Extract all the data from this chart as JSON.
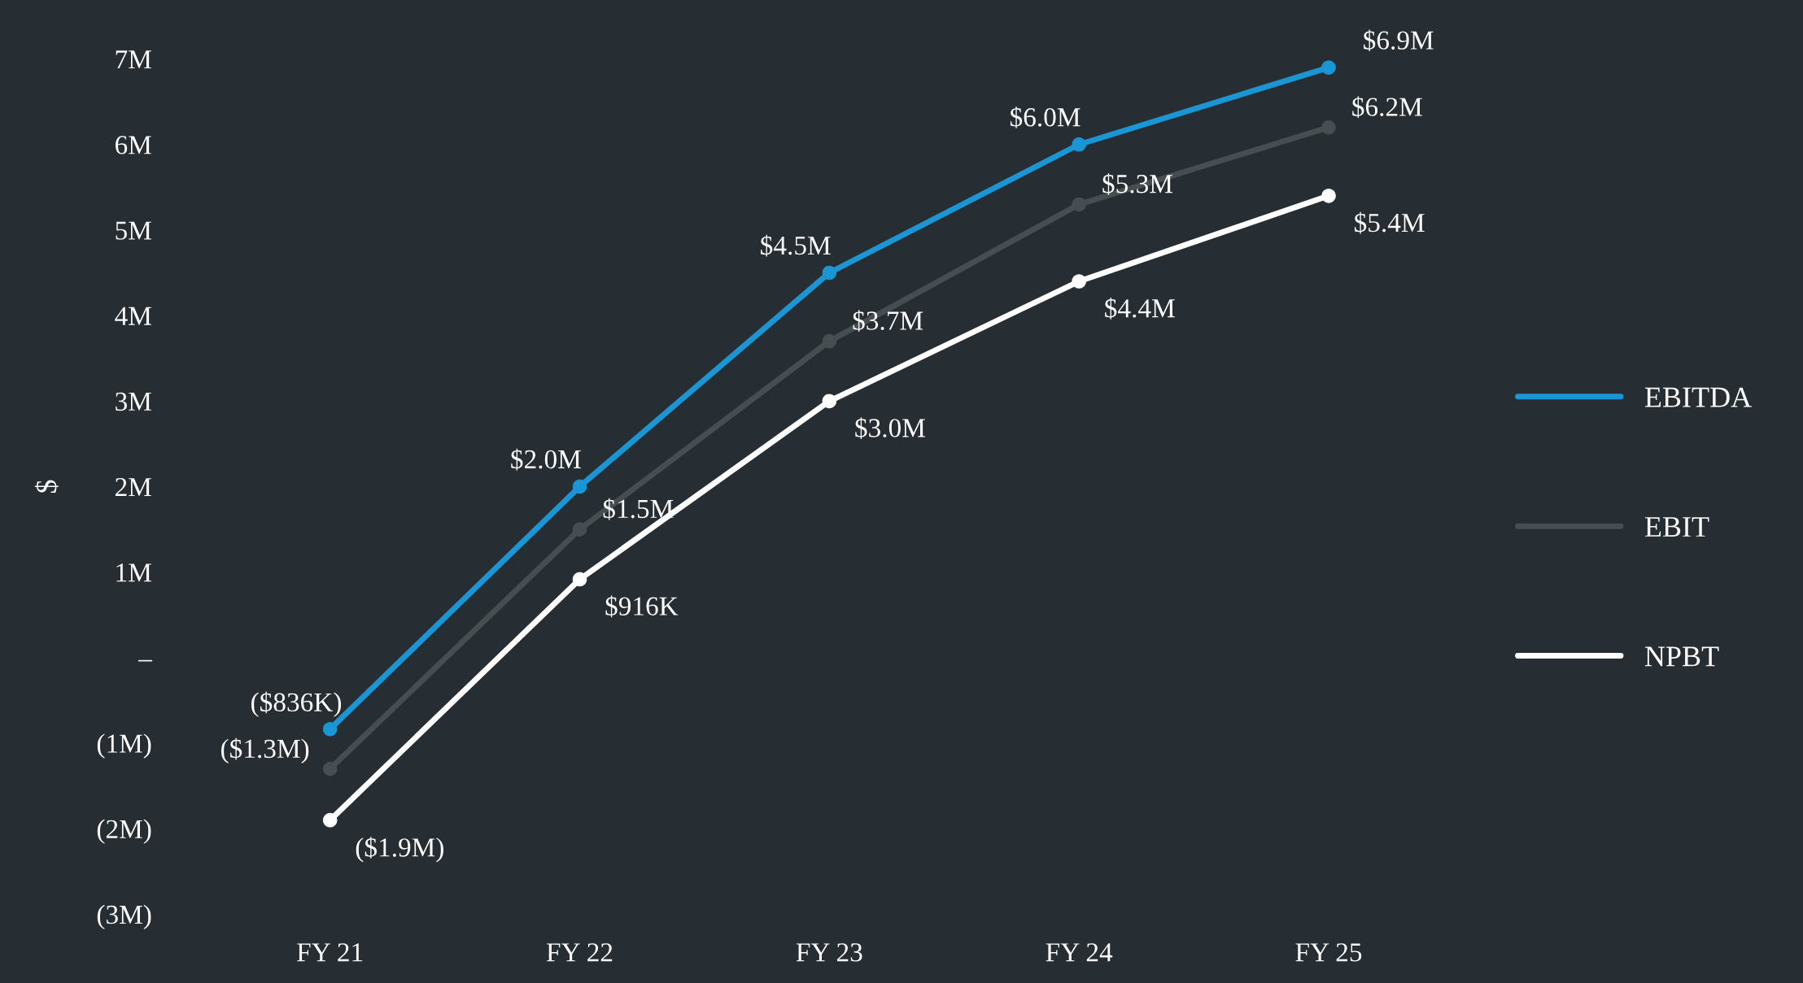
{
  "chart_data": {
    "type": "line",
    "ylabel": "$",
    "categories": [
      "FY 21",
      "FY 22",
      "FY 23",
      "FY 24",
      "FY 25"
    ],
    "series": [
      {
        "name": "EBITDA",
        "color": "#1a96d4",
        "values": [
          -836000,
          2000000,
          4500000,
          6000000,
          6900000
        ],
        "value_labels": [
          "($836K)",
          "$2.0M",
          "$4.5M",
          "$6.0M",
          "$6.9M"
        ]
      },
      {
        "name": "EBIT",
        "color": "#474e52",
        "values": [
          -1300000,
          1500000,
          3700000,
          5300000,
          6200000
        ],
        "value_labels": [
          "($1.3M)",
          "$1.5M",
          "$3.7M",
          "$5.3M",
          "$6.2M"
        ]
      },
      {
        "name": "NPBT",
        "color": "#ffffff",
        "values": [
          -1900000,
          916000,
          3000000,
          4400000,
          5400000
        ],
        "value_labels": [
          "($1.9M)",
          "$916K",
          "$3.0M",
          "$4.4M",
          "$5.4M"
        ]
      }
    ],
    "ylim": [
      -3000000,
      7000000
    ],
    "yticks": [
      {
        "value": -3000000,
        "label": "(3M)"
      },
      {
        "value": -2000000,
        "label": "(2M)"
      },
      {
        "value": -1000000,
        "label": "(1M)"
      },
      {
        "value": 0,
        "label": "–"
      },
      {
        "value": 1000000,
        "label": "1M"
      },
      {
        "value": 2000000,
        "label": "2M"
      },
      {
        "value": 3000000,
        "label": "3M"
      },
      {
        "value": 4000000,
        "label": "4M"
      },
      {
        "value": 5000000,
        "label": "5M"
      },
      {
        "value": 6000000,
        "label": "6M"
      },
      {
        "value": 7000000,
        "label": "7M"
      }
    ],
    "grid": false,
    "legend": "right",
    "marker": "circle",
    "line_style": "solid"
  }
}
